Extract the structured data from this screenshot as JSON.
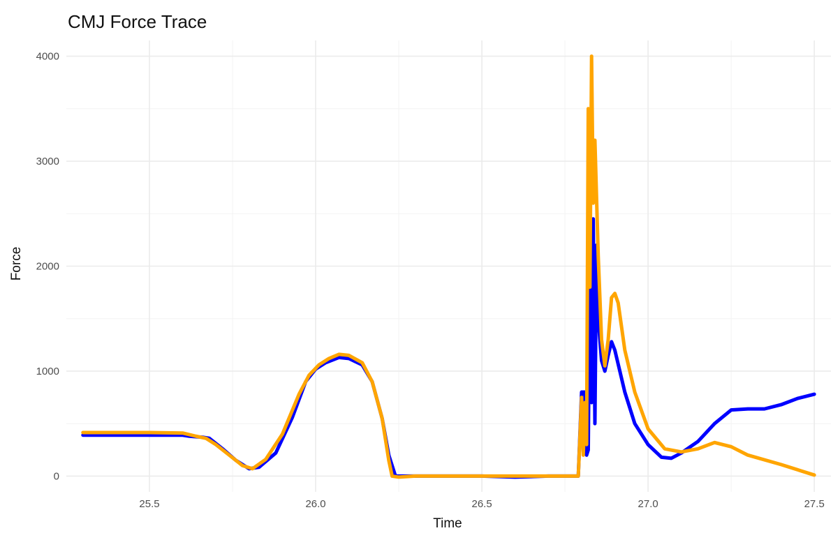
{
  "chart_data": {
    "type": "line",
    "title": "CMJ Force Trace",
    "xlabel": "Time",
    "ylabel": "Force",
    "xlim": [
      25.25,
      27.55
    ],
    "ylim": [
      -150,
      4150
    ],
    "x_ticks": [
      25.5,
      26.0,
      26.5,
      27.0,
      27.5
    ],
    "x_tick_labels": [
      "25.5",
      "26.0",
      "26.5",
      "27.0",
      "27.5"
    ],
    "y_ticks": [
      0,
      1000,
      2000,
      3000,
      4000
    ],
    "y_tick_labels": [
      "0",
      "1000",
      "2000",
      "3000",
      "4000"
    ],
    "grid": true,
    "legend": "none",
    "series": [
      {
        "color": "#0000FF",
        "points": [
          [
            25.3,
            390
          ],
          [
            25.4,
            390
          ],
          [
            25.5,
            390
          ],
          [
            25.6,
            390
          ],
          [
            25.62,
            380
          ],
          [
            25.66,
            370
          ],
          [
            25.68,
            360
          ],
          [
            25.72,
            260
          ],
          [
            25.76,
            150
          ],
          [
            25.8,
            70
          ],
          [
            25.83,
            85
          ],
          [
            25.88,
            220
          ],
          [
            25.93,
            560
          ],
          [
            25.97,
            900
          ],
          [
            26.0,
            1020
          ],
          [
            26.03,
            1080
          ],
          [
            26.07,
            1130
          ],
          [
            26.1,
            1120
          ],
          [
            26.14,
            1060
          ],
          [
            26.17,
            900
          ],
          [
            26.2,
            550
          ],
          [
            26.22,
            200
          ],
          [
            26.24,
            0
          ],
          [
            26.3,
            0
          ],
          [
            26.5,
            0
          ],
          [
            26.6,
            -10
          ],
          [
            26.7,
            0
          ],
          [
            26.79,
            0
          ],
          [
            26.8,
            800
          ],
          [
            26.81,
            800
          ],
          [
            26.815,
            200
          ],
          [
            26.82,
            250
          ],
          [
            26.825,
            2100
          ],
          [
            26.83,
            700
          ],
          [
            26.835,
            2450
          ],
          [
            26.84,
            500
          ],
          [
            26.845,
            2200
          ],
          [
            26.85,
            1500
          ],
          [
            26.86,
            1100
          ],
          [
            26.87,
            1000
          ],
          [
            26.88,
            1150
          ],
          [
            26.89,
            1280
          ],
          [
            26.9,
            1200
          ],
          [
            26.93,
            800
          ],
          [
            26.96,
            500
          ],
          [
            27.0,
            300
          ],
          [
            27.04,
            180
          ],
          [
            27.07,
            170
          ],
          [
            27.1,
            220
          ],
          [
            27.15,
            330
          ],
          [
            27.2,
            500
          ],
          [
            27.25,
            630
          ],
          [
            27.3,
            640
          ],
          [
            27.35,
            640
          ],
          [
            27.4,
            680
          ],
          [
            27.45,
            740
          ],
          [
            27.5,
            780
          ]
        ]
      },
      {
        "color": "#FFA500",
        "points": [
          [
            25.3,
            415
          ],
          [
            25.4,
            415
          ],
          [
            25.5,
            415
          ],
          [
            25.6,
            410
          ],
          [
            25.64,
            380
          ],
          [
            25.67,
            360
          ],
          [
            25.7,
            300
          ],
          [
            25.74,
            200
          ],
          [
            25.78,
            100
          ],
          [
            25.81,
            70
          ],
          [
            25.85,
            160
          ],
          [
            25.9,
            400
          ],
          [
            25.95,
            780
          ],
          [
            25.98,
            960
          ],
          [
            26.01,
            1060
          ],
          [
            26.04,
            1120
          ],
          [
            26.07,
            1160
          ],
          [
            26.1,
            1150
          ],
          [
            26.14,
            1080
          ],
          [
            26.17,
            900
          ],
          [
            26.2,
            550
          ],
          [
            26.22,
            150
          ],
          [
            26.23,
            0
          ],
          [
            26.25,
            -10
          ],
          [
            26.3,
            0
          ],
          [
            26.5,
            0
          ],
          [
            26.7,
            0
          ],
          [
            26.79,
            0
          ],
          [
            26.8,
            750
          ],
          [
            26.805,
            200
          ],
          [
            26.81,
            700
          ],
          [
            26.815,
            300
          ],
          [
            26.82,
            3500
          ],
          [
            26.825,
            1800
          ],
          [
            26.83,
            4000
          ],
          [
            26.835,
            2600
          ],
          [
            26.84,
            3200
          ],
          [
            26.85,
            2100
          ],
          [
            26.86,
            1300
          ],
          [
            26.87,
            1050
          ],
          [
            26.88,
            1300
          ],
          [
            26.89,
            1700
          ],
          [
            26.9,
            1740
          ],
          [
            26.91,
            1650
          ],
          [
            26.93,
            1200
          ],
          [
            26.96,
            800
          ],
          [
            27.0,
            450
          ],
          [
            27.05,
            260
          ],
          [
            27.1,
            230
          ],
          [
            27.15,
            260
          ],
          [
            27.2,
            320
          ],
          [
            27.25,
            280
          ],
          [
            27.3,
            200
          ],
          [
            27.4,
            110
          ],
          [
            27.5,
            10
          ]
        ]
      }
    ]
  }
}
